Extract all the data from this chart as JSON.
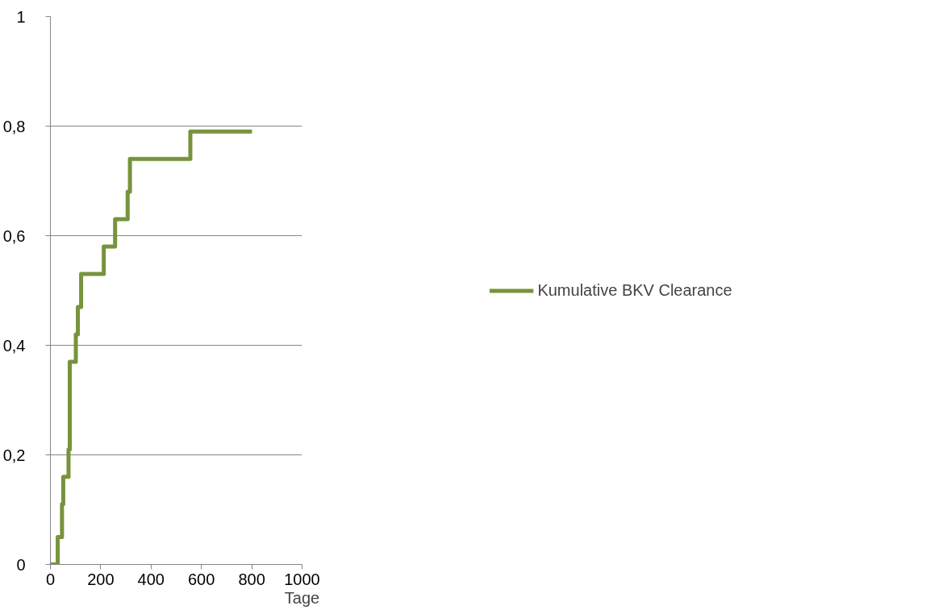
{
  "chart_data": {
    "type": "step",
    "xlabel": "Tage",
    "x": [
      0,
      29,
      46,
      51,
      72,
      77,
      101,
      109,
      122,
      212,
      257,
      307,
      316,
      556,
      801
    ],
    "series": [
      {
        "name": "Kumulative BKV Clearance",
        "color": "#77933c",
        "values": [
          0,
          0.05,
          0.11,
          0.16,
          0.21,
          0.37,
          0.42,
          0.47,
          0.53,
          0.58,
          0.63,
          0.68,
          0.74,
          0.79,
          0.79
        ]
      }
    ],
    "xlim": [
      0,
      1000
    ],
    "xticks": [
      0,
      200,
      400,
      600,
      800,
      1000
    ],
    "ylim": [
      0,
      1
    ],
    "yticks": [
      0,
      {
        "value": 0.2,
        "label": "0,2"
      },
      {
        "value": 0.4,
        "label": "0,4"
      },
      {
        "value": 0.6,
        "label": "0,6"
      },
      {
        "value": 0.8,
        "label": "0,8"
      },
      1
    ],
    "grid": "y",
    "legend": "right",
    "marker": "none",
    "line_style": "solid"
  }
}
